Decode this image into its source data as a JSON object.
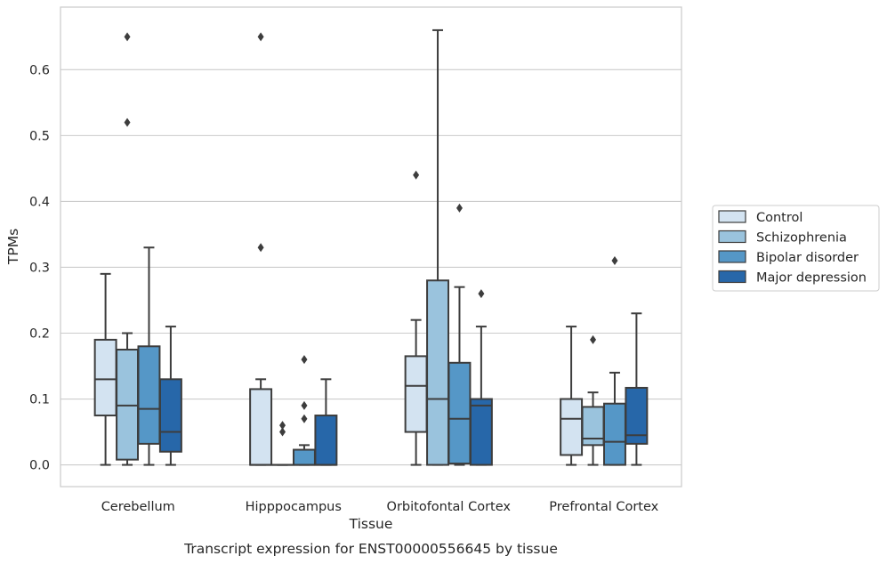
{
  "figure": {
    "caption": "Transcript expression for ENST00000556645 by tissue"
  },
  "chart_data": {
    "type": "boxplot",
    "xlabel": "Tissue",
    "ylabel": "TPMs",
    "ylim": [
      -0.033,
      0.695
    ],
    "yticks": [
      0.0,
      0.1,
      0.2,
      0.3,
      0.4,
      0.5,
      0.6
    ],
    "ytick_labels": [
      "0.0",
      "0.1",
      "0.2",
      "0.3",
      "0.4",
      "0.5",
      "0.6"
    ],
    "grid": true,
    "legend_position": "right, outside plot",
    "categories": [
      "Cerebellum",
      "Hipppocampus",
      "Orbitofontal Cortex",
      "Prefrontal Cortex"
    ],
    "series": [
      {
        "name": "Control",
        "color": "#d3e3f1",
        "boxes": [
          {
            "whislo": 0.0,
            "q1": 0.075,
            "med": 0.13,
            "q3": 0.19,
            "whishi": 0.29,
            "fliers": []
          },
          {
            "whislo": 0.0,
            "q1": 0.0,
            "med": 0.0,
            "q3": 0.115,
            "whishi": 0.13,
            "fliers": [
              0.33,
              0.65
            ]
          },
          {
            "whislo": 0.0,
            "q1": 0.05,
            "med": 0.12,
            "q3": 0.165,
            "whishi": 0.22,
            "fliers": [
              0.44
            ]
          },
          {
            "whislo": 0.0,
            "q1": 0.015,
            "med": 0.07,
            "q3": 0.1,
            "whishi": 0.21,
            "fliers": []
          }
        ]
      },
      {
        "name": "Schizophrenia",
        "color": "#9ac3dd",
        "boxes": [
          {
            "whislo": 0.0,
            "q1": 0.008,
            "med": 0.09,
            "q3": 0.175,
            "whishi": 0.2,
            "fliers": [
              0.52,
              0.65
            ]
          },
          {
            "whislo": 0.0,
            "q1": 0.0,
            "med": 0.0,
            "q3": 0.0,
            "whishi": 0.0,
            "fliers": [
              0.05,
              0.06
            ]
          },
          {
            "whislo": 0.0,
            "q1": 0.0,
            "med": 0.1,
            "q3": 0.28,
            "whishi": 0.66,
            "fliers": []
          },
          {
            "whislo": 0.0,
            "q1": 0.03,
            "med": 0.04,
            "q3": 0.088,
            "whishi": 0.11,
            "fliers": [
              0.19
            ]
          }
        ]
      },
      {
        "name": "Bipolar disorder",
        "color": "#5597c7",
        "boxes": [
          {
            "whislo": 0.0,
            "q1": 0.032,
            "med": 0.085,
            "q3": 0.18,
            "whishi": 0.33,
            "fliers": []
          },
          {
            "whislo": 0.0,
            "q1": 0.0,
            "med": 0.0,
            "q3": 0.023,
            "whishi": 0.03,
            "fliers": [
              0.07,
              0.09,
              0.16
            ]
          },
          {
            "whislo": 0.0,
            "q1": 0.002,
            "med": 0.07,
            "q3": 0.155,
            "whishi": 0.27,
            "fliers": [
              0.39
            ]
          },
          {
            "whislo": 0.0,
            "q1": 0.0,
            "med": 0.035,
            "q3": 0.093,
            "whishi": 0.14,
            "fliers": [
              0.31
            ]
          }
        ]
      },
      {
        "name": "Major depression",
        "color": "#2767a9",
        "boxes": [
          {
            "whislo": 0.0,
            "q1": 0.02,
            "med": 0.05,
            "q3": 0.13,
            "whishi": 0.21,
            "fliers": []
          },
          {
            "whislo": 0.0,
            "q1": 0.0,
            "med": 0.0,
            "q3": 0.075,
            "whishi": 0.13,
            "fliers": []
          },
          {
            "whislo": 0.0,
            "q1": 0.0,
            "med": 0.09,
            "q3": 0.1,
            "whishi": 0.21,
            "fliers": [
              0.26
            ]
          },
          {
            "whislo": 0.0,
            "q1": 0.032,
            "med": 0.045,
            "q3": 0.117,
            "whishi": 0.23,
            "fliers": []
          }
        ]
      }
    ]
  }
}
